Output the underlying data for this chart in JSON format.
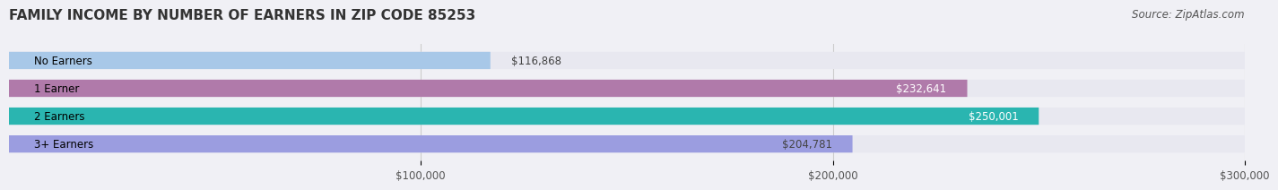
{
  "title": "FAMILY INCOME BY NUMBER OF EARNERS IN ZIP CODE 85253",
  "source": "Source: ZipAtlas.com",
  "categories": [
    "No Earners",
    "1 Earner",
    "2 Earners",
    "3+ Earners"
  ],
  "values": [
    116868,
    232641,
    250001,
    204781
  ],
  "bar_colors": [
    "#a8c8e8",
    "#b07aaa",
    "#2ab5b0",
    "#9b9de0"
  ],
  "label_colors": [
    "#444444",
    "#ffffff",
    "#ffffff",
    "#444444"
  ],
  "xlim": [
    0,
    300000
  ],
  "xticks": [
    100000,
    200000,
    300000
  ],
  "xtick_labels": [
    "$100,000",
    "$200,000",
    "$300,000"
  ],
  "title_fontsize": 11,
  "source_fontsize": 8.5,
  "bar_label_fontsize": 8.5,
  "category_fontsize": 8.5,
  "background_color": "#f0f0f5",
  "bar_background_color": "#e8e8f0",
  "bar_height": 0.62
}
